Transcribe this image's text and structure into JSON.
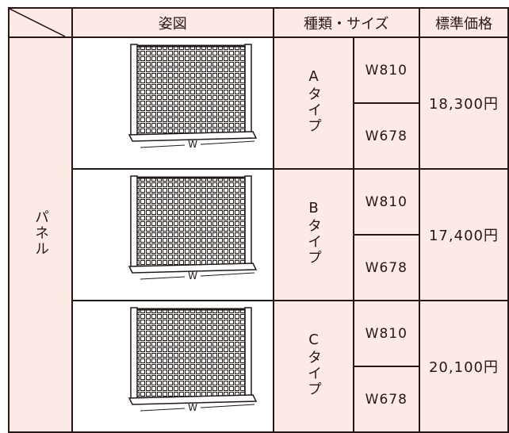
{
  "header": {
    "diagram": "姿図",
    "type_size": "種類・サイズ",
    "price": "標準価格"
  },
  "category": "パネル",
  "rows": [
    {
      "type": "Aタイプ",
      "sizes": [
        "W810",
        "W678"
      ],
      "price": "18,300円",
      "image_label": "W"
    },
    {
      "type": "Bタイプ",
      "sizes": [
        "W810",
        "W678"
      ],
      "price": "17,400円",
      "image_label": "W"
    },
    {
      "type": "Cタイプ",
      "sizes": [
        "W810",
        "W678"
      ],
      "price": "20,100円",
      "image_label": "W"
    }
  ]
}
